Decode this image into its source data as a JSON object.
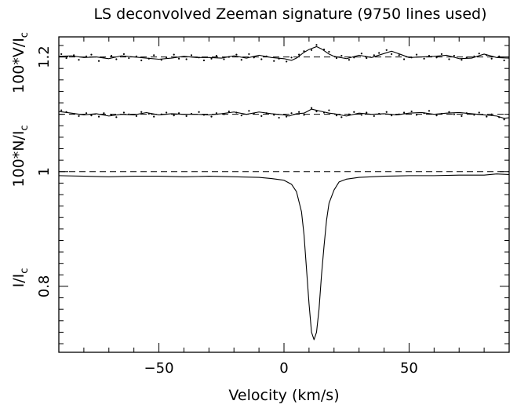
{
  "chart_data": {
    "type": "line",
    "title": "LS deconvolved Zeeman signature (9750 lines used)",
    "xlabel": "Velocity (km/s)",
    "ylabel_segments": [
      {
        "base": "I/I",
        "sub": "c"
      },
      {
        "base": "100*N/I",
        "sub": "c"
      },
      {
        "base": "100*V/I",
        "sub": "c"
      }
    ],
    "xlim": [
      -90,
      90
    ],
    "ylim": [
      0.685,
      1.235
    ],
    "xticks": [
      -50,
      0,
      50
    ],
    "xtick_labels": [
      "−50",
      "0",
      "50"
    ],
    "yticks": [
      0.8,
      1,
      1.2
    ],
    "ytick_labels": [
      "0.8",
      "1",
      "1.2"
    ],
    "reference_lines": [
      {
        "name": "continuum",
        "y": 1.0
      },
      {
        "name": "null_offset",
        "y": 1.1
      },
      {
        "name": "stokes_v_offset",
        "y": 1.2
      }
    ],
    "series": [
      {
        "id": "stokes_i",
        "style": "solid",
        "x": [
          -90,
          -80,
          -70,
          -60,
          -50,
          -40,
          -30,
          -20,
          -10,
          -5,
          0,
          3,
          5,
          7,
          8,
          9,
          10,
          11,
          12,
          13,
          14,
          15,
          16,
          17,
          18,
          20,
          22,
          25,
          30,
          40,
          50,
          60,
          70,
          80,
          85,
          90
        ],
        "y": [
          0.993,
          0.992,
          0.991,
          0.992,
          0.992,
          0.991,
          0.992,
          0.991,
          0.99,
          0.988,
          0.985,
          0.978,
          0.965,
          0.93,
          0.89,
          0.83,
          0.77,
          0.72,
          0.707,
          0.72,
          0.76,
          0.82,
          0.87,
          0.915,
          0.945,
          0.968,
          0.982,
          0.987,
          0.99,
          0.992,
          0.993,
          0.993,
          0.994,
          0.994,
          0.996,
          0.995
        ]
      },
      {
        "id": "null_fit",
        "style": "solid",
        "x": [
          -90,
          -85,
          -80,
          -75,
          -70,
          -65,
          -60,
          -55,
          -50,
          -45,
          -40,
          -35,
          -30,
          -25,
          -20,
          -15,
          -10,
          -5,
          0,
          2,
          5,
          8,
          11,
          13,
          15,
          18,
          20,
          25,
          30,
          35,
          40,
          45,
          50,
          55,
          60,
          65,
          70,
          75,
          80,
          85,
          88,
          90
        ],
        "y": [
          1.105,
          1.102,
          1.099,
          1.101,
          1.097,
          1.1,
          1.099,
          1.103,
          1.099,
          1.101,
          1.1,
          1.1,
          1.099,
          1.101,
          1.104,
          1.1,
          1.104,
          1.101,
          1.099,
          1.097,
          1.101,
          1.102,
          1.109,
          1.107,
          1.105,
          1.102,
          1.101,
          1.097,
          1.102,
          1.1,
          1.101,
          1.099,
          1.102,
          1.103,
          1.1,
          1.102,
          1.103,
          1.101,
          1.099,
          1.097,
          1.093,
          1.094
        ]
      },
      {
        "id": "null_points",
        "style": "dots",
        "x": [
          -89,
          -87,
          -84,
          -82,
          -79,
          -77,
          -74,
          -72,
          -69,
          -67,
          -64,
          -62,
          -59,
          -57,
          -54,
          -52,
          -49,
          -47,
          -44,
          -42,
          -39,
          -37,
          -34,
          -32,
          -29,
          -27,
          -24,
          -22,
          -19,
          -17,
          -14,
          -12,
          -9,
          -7,
          -4,
          -2,
          1,
          3,
          6,
          8,
          11,
          13,
          16,
          18,
          21,
          23,
          26,
          28,
          31,
          33,
          36,
          38,
          41,
          43,
          46,
          48,
          51,
          53,
          56,
          58,
          61,
          63,
          66,
          68,
          71,
          73,
          76,
          78,
          81,
          83,
          86,
          88
        ],
        "y": [
          1.107,
          1.104,
          1.101,
          1.097,
          1.102,
          1.098,
          1.096,
          1.102,
          1.099,
          1.095,
          1.103,
          1.1,
          1.097,
          1.104,
          1.101,
          1.096,
          1.1,
          1.103,
          1.098,
          1.102,
          1.097,
          1.101,
          1.104,
          1.099,
          1.096,
          1.102,
          1.1,
          1.105,
          1.103,
          1.098,
          1.106,
          1.101,
          1.097,
          1.102,
          1.099,
          1.094,
          1.096,
          1.102,
          1.104,
          1.099,
          1.111,
          1.105,
          1.103,
          1.107,
          1.098,
          1.095,
          1.1,
          1.104,
          1.099,
          1.103,
          1.097,
          1.101,
          1.104,
          1.098,
          1.1,
          1.103,
          1.105,
          1.099,
          1.102,
          1.106,
          1.098,
          1.101,
          1.104,
          1.1,
          1.097,
          1.102,
          1.099,
          1.103,
          1.096,
          1.1,
          1.095,
          1.091
        ]
      },
      {
        "id": "stokes_v_fit",
        "style": "solid",
        "x": [
          -90,
          -85,
          -80,
          -75,
          -70,
          -65,
          -60,
          -55,
          -50,
          -45,
          -40,
          -35,
          -30,
          -25,
          -20,
          -15,
          -10,
          -5,
          0,
          3,
          5,
          8,
          10,
          13,
          15,
          18,
          20,
          25,
          30,
          35,
          40,
          43,
          45,
          50,
          55,
          60,
          65,
          70,
          75,
          80,
          85,
          90
        ],
        "y": [
          1.201,
          1.202,
          1.199,
          1.2,
          1.197,
          1.202,
          1.2,
          1.198,
          1.196,
          1.198,
          1.201,
          1.199,
          1.199,
          1.198,
          1.202,
          1.198,
          1.203,
          1.199,
          1.197,
          1.194,
          1.198,
          1.208,
          1.213,
          1.218,
          1.214,
          1.205,
          1.201,
          1.197,
          1.203,
          1.199,
          1.206,
          1.21,
          1.207,
          1.199,
          1.2,
          1.201,
          1.203,
          1.197,
          1.198,
          1.205,
          1.199,
          1.198
        ]
      },
      {
        "id": "stokes_v_points",
        "style": "dots",
        "x": [
          -89,
          -87,
          -84,
          -82,
          -79,
          -77,
          -74,
          -72,
          -69,
          -67,
          -64,
          -62,
          -59,
          -57,
          -54,
          -52,
          -49,
          -47,
          -44,
          -42,
          -39,
          -37,
          -34,
          -32,
          -29,
          -27,
          -24,
          -22,
          -19,
          -17,
          -14,
          -12,
          -9,
          -7,
          -4,
          -2,
          1,
          3,
          6,
          8,
          11,
          13,
          16,
          18,
          21,
          23,
          26,
          28,
          31,
          33,
          36,
          38,
          41,
          43,
          46,
          48,
          51,
          53,
          56,
          58,
          61,
          63,
          66,
          68,
          71,
          73,
          76,
          78,
          81,
          83,
          86,
          88
        ],
        "y": [
          1.205,
          1.198,
          1.203,
          1.195,
          1.201,
          1.204,
          1.193,
          1.199,
          1.202,
          1.196,
          1.205,
          1.198,
          1.201,
          1.194,
          1.197,
          1.203,
          1.195,
          1.199,
          1.204,
          1.197,
          1.196,
          1.203,
          1.199,
          1.194,
          1.197,
          1.202,
          1.196,
          1.2,
          1.204,
          1.195,
          1.205,
          1.199,
          1.196,
          1.201,
          1.193,
          1.197,
          1.192,
          1.199,
          1.204,
          1.21,
          1.212,
          1.221,
          1.213,
          1.209,
          1.198,
          1.202,
          1.195,
          1.199,
          1.206,
          1.198,
          1.203,
          1.207,
          1.212,
          1.205,
          1.203,
          1.196,
          1.199,
          1.204,
          1.197,
          1.202,
          1.199,
          1.205,
          1.196,
          1.202,
          1.195,
          1.199,
          1.201,
          1.206,
          1.203,
          1.197,
          1.201,
          1.194
        ]
      }
    ],
    "grid": false,
    "legend": "none"
  }
}
